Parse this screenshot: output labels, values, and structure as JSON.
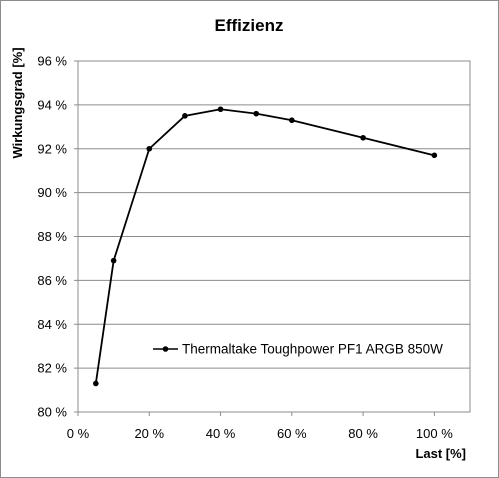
{
  "chart_data": {
    "type": "line",
    "title": "Effizienz",
    "xlabel": "Last [%]",
    "ylabel": "Wirkungsgrad [%]",
    "xlim": [
      0,
      110
    ],
    "ylim": [
      80,
      96
    ],
    "x_ticks": [
      0,
      20,
      40,
      60,
      80,
      100
    ],
    "y_ticks": [
      80,
      82,
      84,
      86,
      88,
      90,
      92,
      94,
      96
    ],
    "x_tick_labels": [
      "0 %",
      "20 %",
      "40 %",
      "60 %",
      "80 %",
      "100 %"
    ],
    "y_tick_labels": [
      "80 %",
      "82 %",
      "84 %",
      "86 %",
      "88 %",
      "90 %",
      "92 %",
      "94 %",
      "96 %"
    ],
    "grid": "horizontal",
    "legend_position": "bottom-right",
    "series": [
      {
        "name": "Thermaltake Toughpower PF1 ARGB 850W",
        "color": "#000000",
        "x": [
          5,
          10,
          20,
          30,
          40,
          50,
          60,
          80,
          100
        ],
        "y": [
          81.3,
          86.9,
          92.0,
          93.5,
          93.8,
          93.6,
          93.3,
          92.5,
          91.7
        ]
      }
    ]
  }
}
